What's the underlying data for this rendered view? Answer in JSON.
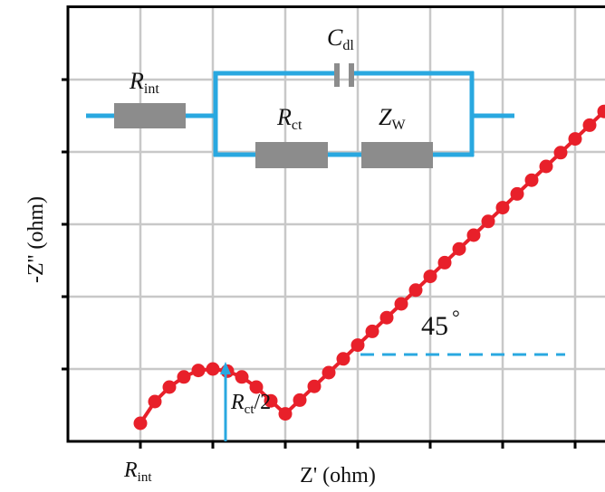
{
  "colors": {
    "series": "#e8202a",
    "circuit": "#29a8e0",
    "resistor": "#8c8c8c",
    "grid": "#c8c8c8",
    "axis": "#000000"
  },
  "chart_data": {
    "type": "scatter",
    "title": "",
    "xlabel": "Z' (ohm)",
    "ylabel": "-Z'' (ohm)",
    "xlim": [
      0,
      7.5
    ],
    "ylim": [
      0,
      6
    ],
    "grid": true,
    "legend": "none",
    "tick_labels": {
      "x": [
        {
          "x": 1,
          "main": "R",
          "sub": "int"
        }
      ]
    },
    "series": [
      {
        "marker": "circle",
        "color": "#e8202a",
        "points": [
          [
            1.0,
            0.25
          ],
          [
            1.2,
            0.55
          ],
          [
            1.4,
            0.75
          ],
          [
            1.6,
            0.89
          ],
          [
            1.8,
            0.98
          ],
          [
            2.0,
            1.0
          ],
          [
            2.2,
            0.97
          ],
          [
            2.4,
            0.89
          ],
          [
            2.6,
            0.75
          ],
          [
            2.8,
            0.56
          ],
          [
            3.0,
            0.38
          ],
          [
            3.2,
            0.57
          ],
          [
            3.4,
            0.76
          ],
          [
            3.6,
            0.95
          ],
          [
            3.8,
            1.14
          ],
          [
            4.0,
            1.33
          ],
          [
            4.2,
            1.52
          ],
          [
            4.4,
            1.71
          ],
          [
            4.6,
            1.9
          ],
          [
            4.8,
            2.09
          ],
          [
            5.0,
            2.28
          ],
          [
            5.2,
            2.47
          ],
          [
            5.4,
            2.66
          ],
          [
            5.6,
            2.85
          ],
          [
            5.8,
            3.04
          ],
          [
            6.0,
            3.23
          ],
          [
            6.2,
            3.42
          ],
          [
            6.4,
            3.61
          ],
          [
            6.6,
            3.8
          ],
          [
            6.8,
            3.99
          ],
          [
            7.0,
            4.18
          ],
          [
            7.2,
            4.37
          ],
          [
            7.4,
            4.56
          ]
        ]
      }
    ],
    "annotations": [
      {
        "kind": "angle",
        "text": "45",
        "symbol": "°"
      },
      {
        "kind": "label",
        "main": "R",
        "sub": "ct",
        "tail": "/2"
      }
    ],
    "inset_circuit": {
      "r_int": {
        "main": "R",
        "sub": "int"
      },
      "c_dl": {
        "main": "C",
        "sub": "dl"
      },
      "r_ct": {
        "main": "R",
        "sub": "ct"
      },
      "z_w": {
        "main": "Z",
        "sub": "W"
      }
    }
  }
}
